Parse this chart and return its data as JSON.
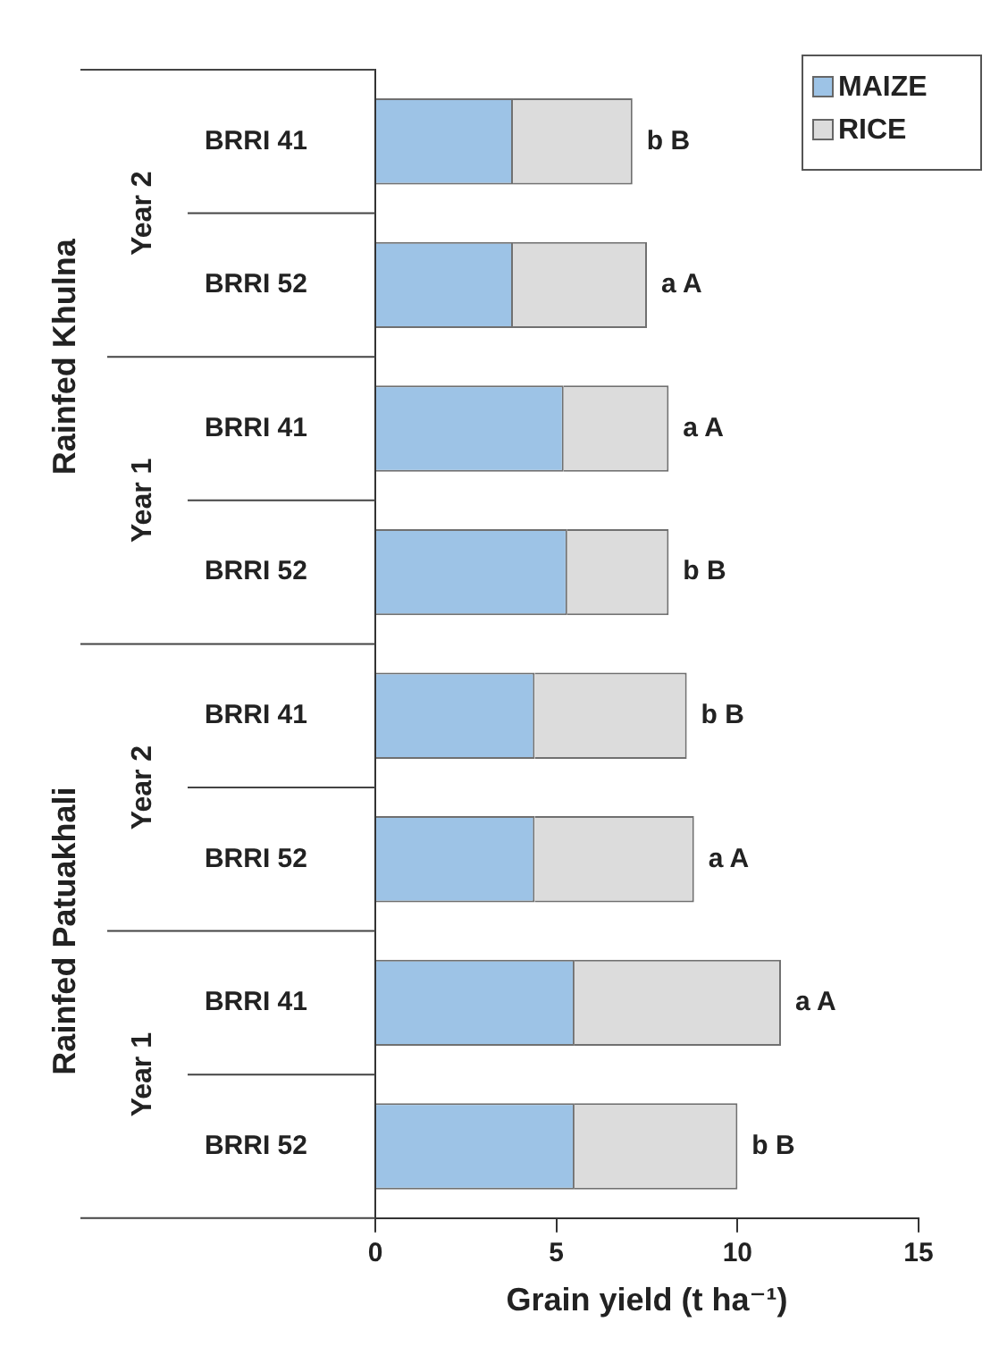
{
  "chart_data": {
    "type": "bar",
    "orientation": "horizontal",
    "stacked": true,
    "categories": [
      "BRRI 41",
      "BRRI 52",
      "BRRI 41",
      "BRRI 52",
      "BRRI 41",
      "BRRI 52",
      "BRRI 41",
      "BRRI 52"
    ],
    "series": [
      {
        "name": "MAIZE",
        "color": "#9dc3e6",
        "values": [
          3.8,
          3.8,
          5.2,
          5.3,
          4.4,
          4.4,
          5.5,
          5.5
        ]
      },
      {
        "name": "RICE",
        "color": "#dcdcdc",
        "values": [
          3.3,
          3.7,
          2.9,
          2.8,
          4.2,
          4.4,
          5.7,
          4.5
        ]
      }
    ],
    "xlim": [
      0,
      15
    ],
    "xticks": [
      0,
      5,
      10,
      15
    ],
    "xlabel": "Grain yield (t ha⁻¹)",
    "annotations": [
      "Year 2",
      "Year 1",
      "Year 2",
      "Year 1",
      "Rainfed Khulna",
      "Rainfed Patuakhali",
      "b B",
      "a A",
      "a A",
      "b B",
      "b B",
      "a A",
      "a A",
      "b B"
    ],
    "legend": "top right",
    "grid": false
  }
}
